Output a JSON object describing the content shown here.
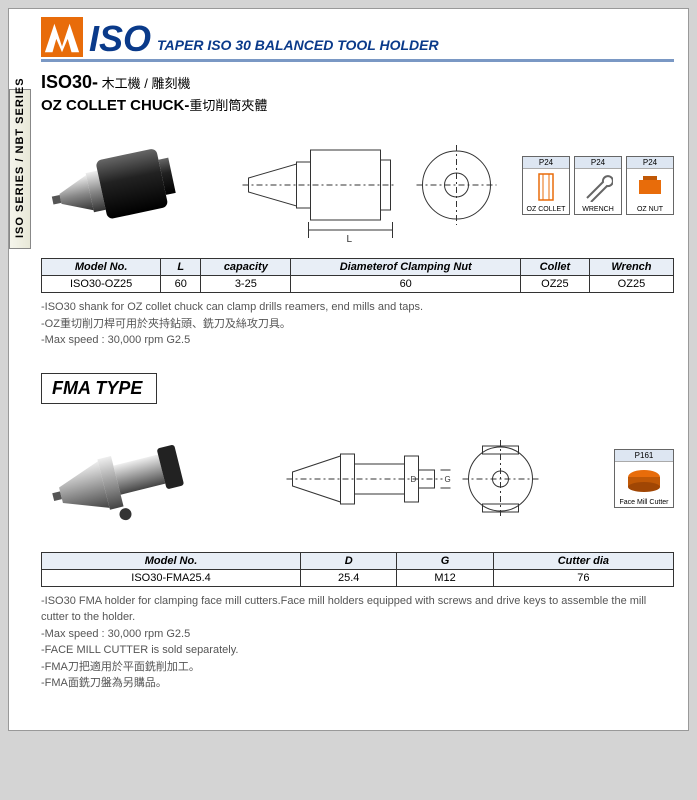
{
  "sideTab": "ISO SERIES / NBT SERIES",
  "titleMain": "ISO",
  "titleSub": "TAPER  ISO 30 BALANCED TOOL HOLDER",
  "section1": {
    "heading": "ISO30-",
    "heading_cn": " 木工機 / 雕刻機",
    "subheading": "OZ COLLET CHUCK-",
    "subheading_cn": "重切削筒夾體",
    "acc": [
      {
        "tag": "P24",
        "label": "OZ COLLET"
      },
      {
        "tag": "P24",
        "label": "WRENCH"
      },
      {
        "tag": "P24",
        "label": "OZ NUT"
      }
    ],
    "table": {
      "cols": [
        "Model No.",
        "L",
        "capacity",
        "Diameterof Clamping Nut",
        "Collet",
        "Wrench"
      ],
      "rows": [
        [
          "ISO30-OZ25",
          "60",
          "3-25",
          "60",
          "OZ25",
          "OZ25"
        ]
      ]
    },
    "notes": [
      "-ISO30 shank for OZ collet chuck can clamp drills reamers, end mills and taps.",
      "-OZ重切削刀桿可用於夾持鉆頭、銑刀及絲攻刀具。",
      "-Max speed : 30,000 rpm G2.5"
    ]
  },
  "section2": {
    "title": "FMA TYPE",
    "acc": [
      {
        "tag": "P161",
        "label": "Face Mill Cutter"
      }
    ],
    "table": {
      "cols": [
        "Model No.",
        "D",
        "G",
        "Cutter dia"
      ],
      "rows": [
        [
          "ISO30-FMA25.4",
          "25.4",
          "M12",
          "76"
        ]
      ]
    },
    "notes": [
      "-ISO30 FMA holder for clamping face mill cutters.Face mill holders equipped with screws and drive keys to assemble the mill cutter to the holder.",
      "-Max speed : 30,000 rpm G2.5",
      "-FACE MILL CUTTER is sold separately.",
      "-FMA刀把適用於平面銑削加工。",
      "-FMA面銑刀盤為另購品。"
    ]
  },
  "colors": {
    "accent": "#0a3a8a",
    "orange": "#e86c0a",
    "thBg": "#e8eef6",
    "ruleBlue": "#7a98c4"
  }
}
